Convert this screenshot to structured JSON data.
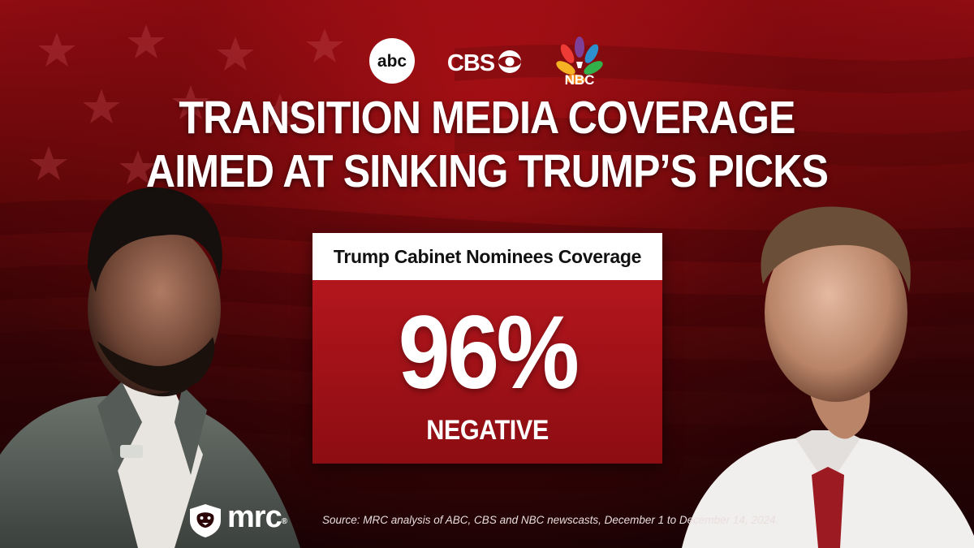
{
  "networks": {
    "abc_label": "abc",
    "cbs_label": "CBS",
    "nbc_label": "NBC"
  },
  "headline": {
    "line1": "TRANSITION MEDIA COVERAGE",
    "line2": "AIMED AT SINKING TRUMP’S PICKS"
  },
  "stat": {
    "title": "Trump Cabinet Nominees Coverage",
    "value": "96%",
    "label": "NEGATIVE"
  },
  "footer": {
    "brand": "mrc",
    "registered_mark": "®",
    "source": "Source: MRC analysis of ABC, CBS and NBC  newscasts, December 1 to December 14, 2024."
  },
  "colors": {
    "background_red": "#8f0c12",
    "box_red": "#b3161d",
    "white": "#ffffff"
  }
}
